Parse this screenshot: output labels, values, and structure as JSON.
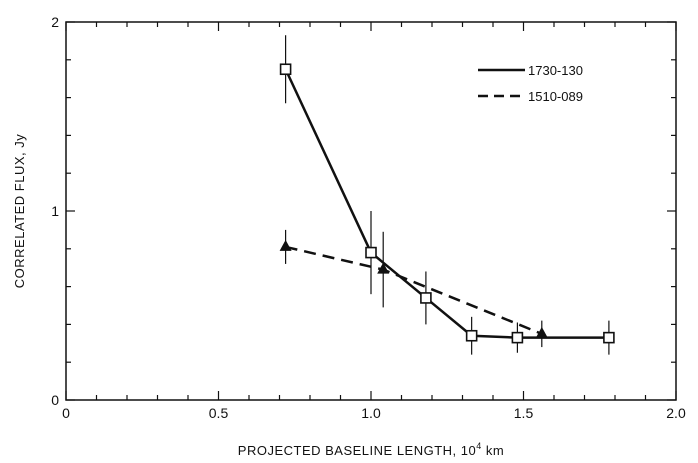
{
  "chart_data": {
    "type": "line",
    "title": "",
    "xlabel": "PROJECTED BASELINE LENGTH, 10",
    "xlabel_superscript": "4",
    "xlabel_unit": " km",
    "ylabel": "CORRELATED FLUX, Jy",
    "xlim": [
      0,
      2.0
    ],
    "ylim": [
      0,
      2
    ],
    "x_ticks": [
      {
        "value": 0,
        "label": "0"
      },
      {
        "value": 0.5,
        "label": "0.5"
      },
      {
        "value": 1.0,
        "label": "1.0"
      },
      {
        "value": 1.5,
        "label": "1.5"
      },
      {
        "value": 2.0,
        "label": "2.0"
      }
    ],
    "y_ticks": [
      {
        "value": 0,
        "label": "0"
      },
      {
        "value": 1,
        "label": "1"
      },
      {
        "value": 2,
        "label": "2"
      }
    ],
    "grid": false,
    "legend_position": "top-right",
    "series": [
      {
        "name": "1730-130",
        "style": "solid",
        "marker": "open-square",
        "color": "#111111",
        "points": [
          {
            "x": 0.72,
            "y": 1.75,
            "err": 0.18
          },
          {
            "x": 1.0,
            "y": 0.78,
            "err": 0.22
          },
          {
            "x": 1.18,
            "y": 0.54,
            "err": 0.14
          },
          {
            "x": 1.33,
            "y": 0.34,
            "err": 0.1
          },
          {
            "x": 1.48,
            "y": 0.33,
            "err": 0.08
          },
          {
            "x": 1.78,
            "y": 0.33,
            "err": 0.09
          }
        ]
      },
      {
        "name": "1510-089",
        "style": "dashed",
        "marker": "filled-triangle",
        "color": "#111111",
        "points": [
          {
            "x": 0.72,
            "y": 0.81,
            "err": 0.09
          },
          {
            "x": 1.04,
            "y": 0.69,
            "err": 0.2
          },
          {
            "x": 1.56,
            "y": 0.35,
            "err": 0.07
          }
        ]
      }
    ]
  }
}
